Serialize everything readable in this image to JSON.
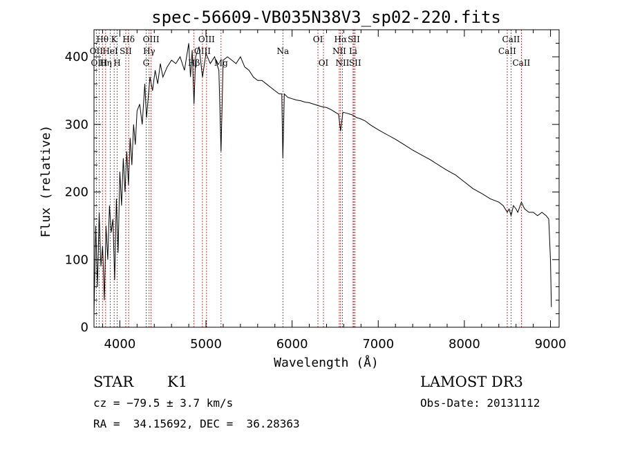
{
  "chart_data": {
    "type": "line",
    "title": "spec-56609-VB035N38V3_sp02-220.fits",
    "xlabel": "Wavelength (Å)",
    "ylabel": "Flux (relative)",
    "xlim": [
      3700,
      9100
    ],
    "ylim": [
      0,
      440
    ],
    "xticks": [
      4000,
      5000,
      6000,
      7000,
      8000,
      9000
    ],
    "yticks": [
      0,
      100,
      200,
      300,
      400
    ],
    "grid": false,
    "series": [
      {
        "name": "flux",
        "x": [
          3700,
          3720,
          3740,
          3760,
          3780,
          3800,
          3820,
          3840,
          3860,
          3880,
          3900,
          3920,
          3940,
          3960,
          3980,
          4000,
          4020,
          4040,
          4060,
          4080,
          4100,
          4120,
          4140,
          4160,
          4180,
          4200,
          4230,
          4260,
          4290,
          4310,
          4330,
          4350,
          4380,
          4410,
          4440,
          4470,
          4500,
          4550,
          4600,
          4650,
          4700,
          4750,
          4800,
          4820,
          4840,
          4861,
          4880,
          4920,
          4960,
          5000,
          5050,
          5100,
          5150,
          5175,
          5200,
          5250,
          5300,
          5350,
          5400,
          5450,
          5500,
          5550,
          5600,
          5650,
          5700,
          5750,
          5800,
          5850,
          5880,
          5893,
          5910,
          5950,
          6000,
          6050,
          6100,
          6150,
          6200,
          6250,
          6300,
          6350,
          6400,
          6450,
          6500,
          6540,
          6563,
          6590,
          6650,
          6700,
          6750,
          6800,
          6850,
          6900,
          6950,
          7000,
          7100,
          7200,
          7300,
          7400,
          7500,
          7600,
          7700,
          7800,
          7900,
          8000,
          8100,
          8200,
          8300,
          8400,
          8450,
          8498,
          8520,
          8542,
          8570,
          8600,
          8620,
          8662,
          8700,
          8750,
          8800,
          8850,
          8900,
          8950,
          8980,
          9000,
          9010
        ],
        "y": [
          20,
          150,
          60,
          170,
          90,
          120,
          40,
          150,
          100,
          180,
          140,
          160,
          70,
          190,
          110,
          230,
          180,
          250,
          200,
          260,
          210,
          280,
          240,
          300,
          270,
          320,
          330,
          300,
          360,
          310,
          340,
          370,
          350,
          380,
          360,
          390,
          370,
          385,
          395,
          390,
          400,
          380,
          420,
          370,
          410,
          330,
          400,
          415,
          370,
          405,
          390,
          400,
          380,
          260,
          395,
          400,
          395,
          390,
          400,
          385,
          380,
          370,
          365,
          365,
          360,
          355,
          350,
          345,
          345,
          250,
          345,
          340,
          338,
          336,
          335,
          333,
          332,
          330,
          328,
          326,
          325,
          322,
          318,
          315,
          290,
          318,
          316,
          314,
          310,
          308,
          305,
          300,
          296,
          292,
          285,
          278,
          270,
          262,
          255,
          248,
          240,
          232,
          225,
          215,
          205,
          198,
          190,
          185,
          180,
          170,
          175,
          165,
          180,
          175,
          170,
          185,
          175,
          170,
          170,
          165,
          170,
          165,
          160,
          100,
          30
        ]
      }
    ],
    "lines": [
      {
        "label": "Hθ",
        "x": 3798,
        "row": 1
      },
      {
        "label": "OII",
        "x": 3727,
        "row": 2
      },
      {
        "label": "OIII",
        "x": 3760,
        "row": 3
      },
      {
        "label": "Hη",
        "x": 3835,
        "row": 3
      },
      {
        "label": "HeI",
        "x": 3889,
        "row": 2
      },
      {
        "label": "K",
        "x": 3934,
        "row": 1
      },
      {
        "label": "H",
        "x": 3969,
        "row": 3
      },
      {
        "label": "SII",
        "x": 4069,
        "row": 2
      },
      {
        "label": "Hδ",
        "x": 4102,
        "row": 1
      },
      {
        "label": "OIII",
        "x": 4363,
        "row": 1
      },
      {
        "label": "Hγ",
        "x": 4340,
        "row": 2
      },
      {
        "label": "G",
        "x": 4305,
        "row": 3
      },
      {
        "label": "OIII",
        "x": 5007,
        "row": 1
      },
      {
        "label": "OIII",
        "x": 4959,
        "row": 2
      },
      {
        "label": "Hβ",
        "x": 4861,
        "row": 3
      },
      {
        "label": "Mg",
        "x": 5175,
        "row": 3
      },
      {
        "label": "Na",
        "x": 5893,
        "row": 2
      },
      {
        "label": "OI",
        "x": 6300,
        "row": 1
      },
      {
        "label": "OI",
        "x": 6364,
        "row": 3
      },
      {
        "label": "Hα",
        "x": 6563,
        "row": 1
      },
      {
        "label": "NII",
        "x": 6548,
        "row": 2
      },
      {
        "label": "NII",
        "x": 6584,
        "row": 3
      },
      {
        "label": "SII",
        "x": 6717,
        "row": 1
      },
      {
        "label": "Li",
        "x": 6708,
        "row": 2
      },
      {
        "label": "SII",
        "x": 6731,
        "row": 3
      },
      {
        "label": "CaII",
        "x": 8542,
        "row": 1
      },
      {
        "label": "CaII",
        "x": 8498,
        "row": 2
      },
      {
        "label": "CaII",
        "x": 8662,
        "row": 3
      }
    ]
  },
  "info": {
    "object_class": "STAR",
    "subclass": "K1",
    "cz": "cz = −79.5 ± 3.7 km/s",
    "coords": "RA =  34.15692, DEC =  36.28363",
    "survey": "LAMOST DR3",
    "obs_date": "Obs-Date: 20131112"
  },
  "colors": {
    "line_marker": "#cc0000",
    "spectrum": "#000000"
  }
}
